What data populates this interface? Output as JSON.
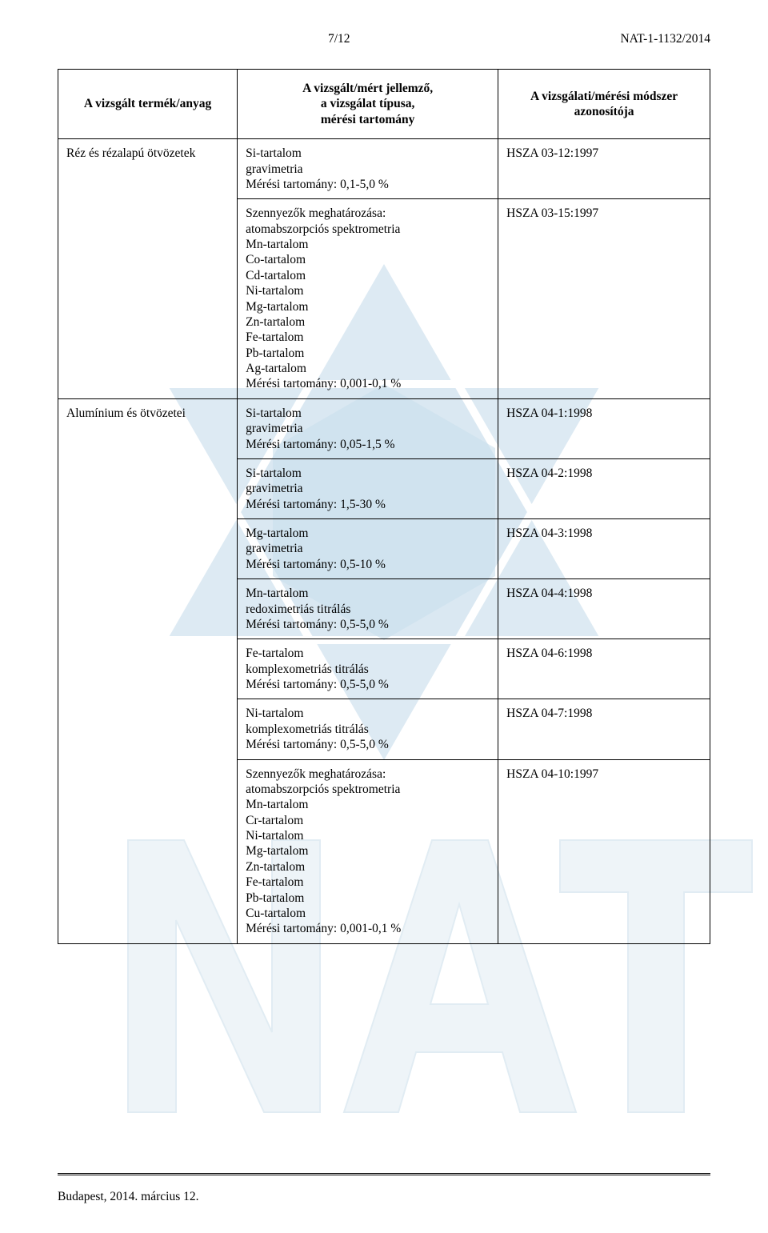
{
  "header": {
    "page_num": "7/12",
    "doc_ref": "NAT-1-1132/2014"
  },
  "table": {
    "headers": {
      "h1": "A vizsgált termék/anyag",
      "h2": "A vizsgált/mért jellemző,\na vizsgálat típusa,\nmérési tartomány",
      "h3": "A vizsgálati/mérési módszer azonosítója"
    },
    "rows": [
      {
        "product": "Réz és rézalapú ötvözetek",
        "product_rowspan": 2,
        "params": [
          "Si-tartalom",
          "gravimetria",
          "Mérési tartomány: 0,1-5,0 %"
        ],
        "method": "HSZA 03-12:1997"
      },
      {
        "product": null,
        "params": [
          "Szennyezők meghatározása:",
          "atomabszorpciós spektrometria",
          "Mn-tartalom",
          "Co-tartalom",
          "Cd-tartalom",
          "Ni-tartalom",
          "Mg-tartalom",
          "Zn-tartalom",
          "Fe-tartalom",
          "Pb-tartalom",
          "Ag-tartalom",
          "Mérési tartomány:   0,001-0,1 %"
        ],
        "method": "HSZA 03-15:1997"
      },
      {
        "product": "Alumínium és ötvözetei",
        "product_rowspan": 7,
        "params": [
          "Si-tartalom",
          "gravimetria",
          "Mérési tartomány: 0,05-1,5 %"
        ],
        "method": "HSZA 04-1:1998"
      },
      {
        "product": null,
        "params": [
          "Si-tartalom",
          "gravimetria",
          "Mérési tartomány: 1,5-30 %"
        ],
        "method": "HSZA 04-2:1998"
      },
      {
        "product": null,
        "params": [
          "Mg-tartalom",
          "gravimetria",
          "Mérési tartomány: 0,5-10 %"
        ],
        "method": "HSZA 04-3:1998"
      },
      {
        "product": null,
        "params": [
          "Mn-tartalom",
          "redoximetriás titrálás",
          "Mérési tartomány: 0,5-5,0 %"
        ],
        "method": "HSZA 04-4:1998"
      },
      {
        "product": null,
        "params": [
          "Fe-tartalom",
          "komplexometriás titrálás",
          "Mérési tartomány: 0,5-5,0 %"
        ],
        "method": "HSZA 04-6:1998"
      },
      {
        "product": null,
        "params": [
          "Ni-tartalom",
          "komplexometriás titrálás",
          "Mérési tartomány: 0,5-5,0 %"
        ],
        "method": "HSZA 04-7:1998"
      },
      {
        "product": null,
        "params": [
          "Szennyezők meghatározása:",
          "atomabszorpciós spektrometria",
          "Mn-tartalom",
          "Cr-tartalom",
          "Ni-tartalom",
          "Mg-tartalom",
          "Zn-tartalom",
          "Fe-tartalom",
          "Pb-tartalom",
          "Cu-tartalom",
          "Mérési tartomány: 0,001-0,1 %"
        ],
        "method": "HSZA 04-10:1997"
      }
    ]
  },
  "footer": {
    "text": "Budapest, 2014. március 12."
  },
  "watermark": {
    "hex_color": "#d9e8f2",
    "nat_text_color": "#e9f1f6"
  }
}
